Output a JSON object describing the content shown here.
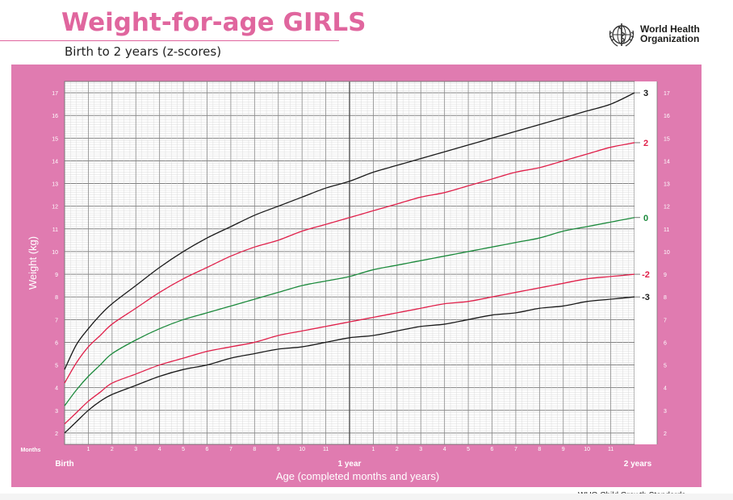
{
  "header": {
    "title": "Weight-for-age GIRLS",
    "subtitle": "Birth to 2 years (z-scores)",
    "org_line1": "World Health",
    "org_line2": "Organization",
    "footer": "WHO Child Growth Standards"
  },
  "colors": {
    "panel": "#e07bb0",
    "title": "#e0669e",
    "black_line": "#1a1a1a",
    "red_line": "#e0204a",
    "green_line": "#1c8a3c"
  },
  "chart_data": {
    "type": "line",
    "title": "Weight-for-age GIRLS",
    "subtitle": "Birth to 2 years (z-scores)",
    "xlabel": "Age (completed months and years)",
    "ylabel": "Weight (kg)",
    "x_unit_label": "Months",
    "xlim": [
      0,
      24
    ],
    "ylim": [
      1.5,
      17.5
    ],
    "y_ticks": [
      2,
      3,
      4,
      5,
      6,
      7,
      8,
      9,
      10,
      11,
      12,
      13,
      14,
      15,
      16,
      17
    ],
    "x_month_labels": [
      "1",
      "2",
      "3",
      "4",
      "5",
      "6",
      "7",
      "8",
      "9",
      "10",
      "11",
      "",
      "1",
      "2",
      "3",
      "4",
      "5",
      "6",
      "7",
      "8",
      "9",
      "10",
      "11"
    ],
    "x_year_labels": [
      {
        "month": 0,
        "label": "Birth"
      },
      {
        "month": 12,
        "label": "1 year"
      },
      {
        "month": 24,
        "label": "2 years"
      }
    ],
    "x": [
      0,
      0.5,
      1,
      1.5,
      2,
      3,
      4,
      5,
      6,
      7,
      8,
      9,
      10,
      11,
      12,
      13,
      14,
      15,
      16,
      17,
      18,
      19,
      20,
      21,
      22,
      23,
      24
    ],
    "grid": true,
    "series": [
      {
        "name": "3",
        "color": "black",
        "values": [
          4.8,
          5.9,
          6.6,
          7.2,
          7.7,
          8.5,
          9.3,
          10.0,
          10.6,
          11.1,
          11.6,
          12.0,
          12.4,
          12.8,
          13.1,
          13.5,
          13.8,
          14.1,
          14.4,
          14.7,
          15.0,
          15.3,
          15.6,
          15.9,
          16.2,
          16.5,
          17.0
        ]
      },
      {
        "name": "2",
        "color": "red",
        "values": [
          4.2,
          5.1,
          5.8,
          6.3,
          6.8,
          7.5,
          8.2,
          8.8,
          9.3,
          9.8,
          10.2,
          10.5,
          10.9,
          11.2,
          11.5,
          11.8,
          12.1,
          12.4,
          12.6,
          12.9,
          13.2,
          13.5,
          13.7,
          14.0,
          14.3,
          14.6,
          14.8
        ]
      },
      {
        "name": "0",
        "color": "green",
        "values": [
          3.2,
          3.9,
          4.5,
          5.0,
          5.5,
          6.1,
          6.6,
          7.0,
          7.3,
          7.6,
          7.9,
          8.2,
          8.5,
          8.7,
          8.9,
          9.2,
          9.4,
          9.6,
          9.8,
          10.0,
          10.2,
          10.4,
          10.6,
          10.9,
          11.1,
          11.3,
          11.5
        ]
      },
      {
        "name": "-2",
        "color": "red",
        "values": [
          2.4,
          2.9,
          3.4,
          3.8,
          4.2,
          4.6,
          5.0,
          5.3,
          5.6,
          5.8,
          6.0,
          6.3,
          6.5,
          6.7,
          6.9,
          7.1,
          7.3,
          7.5,
          7.7,
          7.8,
          8.0,
          8.2,
          8.4,
          8.6,
          8.8,
          8.9,
          9.0
        ]
      },
      {
        "name": "-3",
        "color": "black",
        "values": [
          2.0,
          2.5,
          3.0,
          3.4,
          3.7,
          4.1,
          4.5,
          4.8,
          5.0,
          5.3,
          5.5,
          5.7,
          5.8,
          6.0,
          6.2,
          6.3,
          6.5,
          6.7,
          6.8,
          7.0,
          7.2,
          7.3,
          7.5,
          7.6,
          7.8,
          7.9,
          8.0
        ]
      }
    ]
  }
}
